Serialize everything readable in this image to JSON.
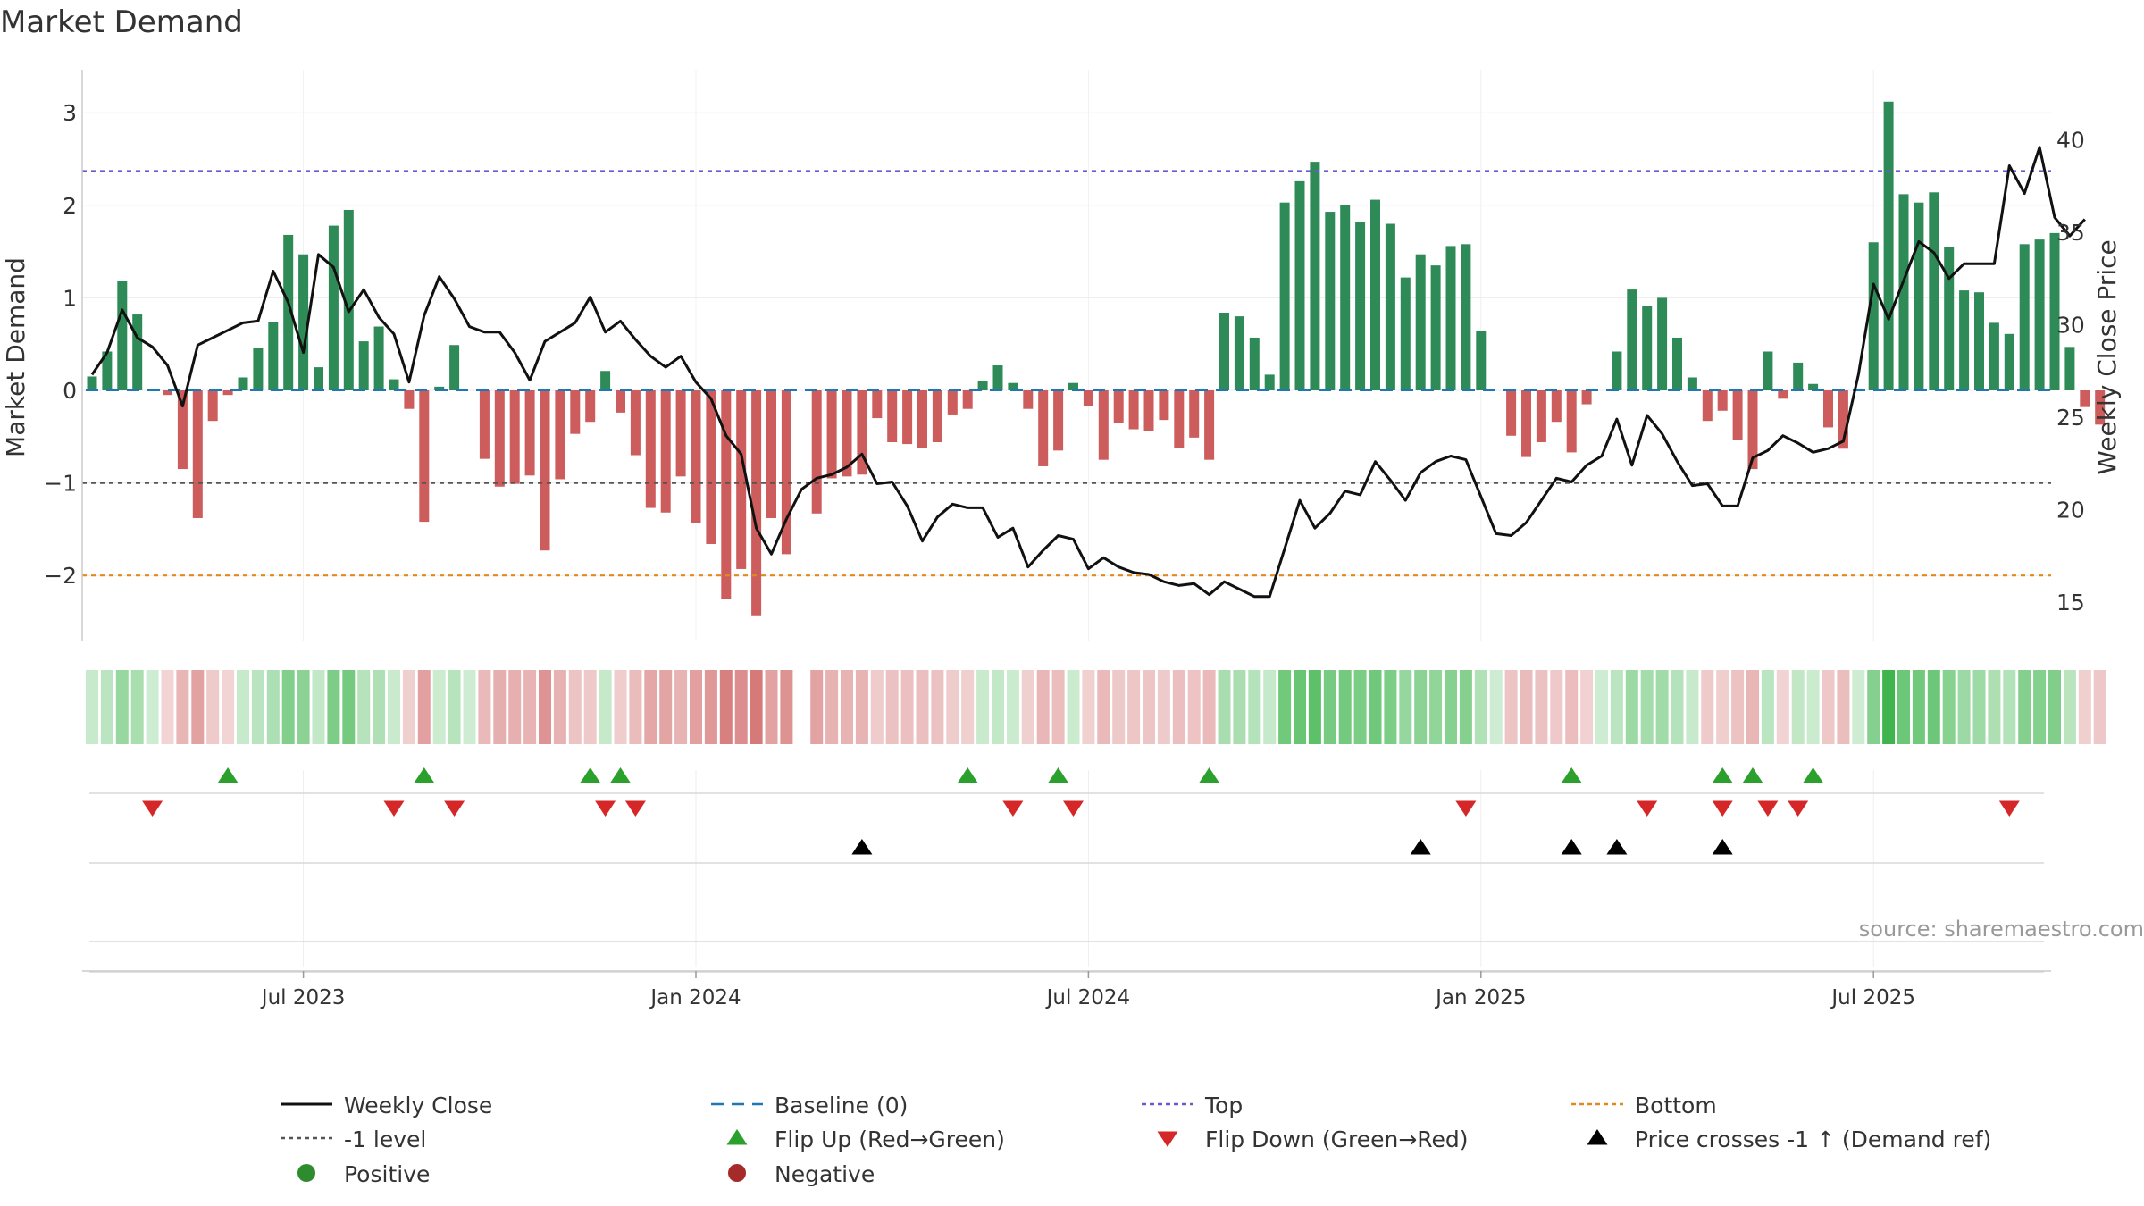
{
  "chart_data": {
    "type": "bar",
    "title": "Market Demand",
    "ylabel": "Market Demand",
    "y2label": "Weekly Close Price",
    "ylim": [
      -2.75,
      3.45
    ],
    "y2lim": [
      12.0,
      43.5
    ],
    "yticks": [
      -2,
      -1,
      0,
      1,
      2,
      3
    ],
    "ytick_labels": [
      "−2",
      "−1",
      "0",
      "1",
      "2",
      "3"
    ],
    "y2ticks": [
      15,
      20,
      25,
      30,
      35,
      40
    ],
    "y2tick_labels": [
      "15",
      "20",
      "25",
      "30",
      "35",
      "40"
    ],
    "xticks": [
      14,
      40,
      66,
      92,
      118
    ],
    "xtick_labels": [
      "Jul 2023",
      "Jan 2024",
      "Jul 2024",
      "Jan 2025",
      "Jul 2025"
    ],
    "reference_lines": {
      "top": 2.37,
      "minus_one": -1.0,
      "bottom": -2.0,
      "baseline": 0
    },
    "demand": [
      0.15,
      0.42,
      1.18,
      0.82,
      0.0,
      -0.05,
      -0.85,
      -1.38,
      -0.33,
      -0.05,
      0.14,
      0.46,
      0.74,
      1.68,
      1.47,
      0.25,
      1.78,
      1.95,
      0.53,
      0.69,
      0.12,
      -0.2,
      -1.42,
      0.04,
      0.49,
      0.0,
      -0.74,
      -1.04,
      -1.01,
      -0.92,
      -1.73,
      -0.96,
      -0.47,
      -0.34,
      0.21,
      -0.24,
      -0.7,
      -1.27,
      -1.32,
      -0.93,
      -1.43,
      -1.66,
      -2.25,
      -1.93,
      -2.43,
      -1.38,
      -1.77,
      null,
      -1.33,
      -0.95,
      -0.93,
      -0.91,
      -0.3,
      -0.56,
      -0.58,
      -0.62,
      -0.56,
      -0.26,
      -0.2,
      0.1,
      0.27,
      0.08,
      -0.2,
      -0.82,
      -0.65,
      0.08,
      -0.17,
      -0.75,
      -0.35,
      -0.42,
      -0.44,
      -0.32,
      -0.62,
      -0.51,
      -0.75,
      0.84,
      0.8,
      0.57,
      0.17,
      2.03,
      2.26,
      2.47,
      1.93,
      2.0,
      1.82,
      2.06,
      1.8,
      1.22,
      1.47,
      1.35,
      1.56,
      1.58,
      0.64,
      0.0,
      -0.49,
      -0.72,
      -0.56,
      -0.34,
      -0.67,
      -0.15,
      0.0,
      0.42,
      1.09,
      0.91,
      1.0,
      0.57,
      0.14,
      -0.33,
      -0.22,
      -0.54,
      -0.85,
      0.42,
      -0.09,
      0.3,
      0.07,
      -0.4,
      -0.63,
      0.02,
      1.6,
      3.12,
      2.12,
      2.03,
      2.14,
      1.55,
      1.08,
      1.06,
      0.73,
      0.61,
      1.58,
      1.63,
      1.7,
      0.47,
      -0.18,
      -0.37
    ],
    "weekly_close": [
      27.3,
      28.5,
      30.8,
      29.3,
      28.8,
      27.8,
      25.6,
      28.9,
      29.3,
      29.7,
      30.1,
      30.2,
      32.9,
      31.2,
      28.5,
      33.8,
      33.1,
      30.7,
      31.9,
      30.4,
      29.5,
      26.9,
      30.5,
      32.6,
      31.4,
      29.9,
      29.6,
      29.6,
      28.5,
      27.0,
      29.1,
      29.6,
      30.1,
      31.5,
      29.6,
      30.2,
      29.2,
      28.3,
      27.7,
      28.3,
      26.9,
      26.0,
      24.0,
      23.0,
      19.0,
      17.6,
      19.5,
      21.1,
      21.7,
      21.9,
      22.3,
      23.0,
      21.4,
      21.5,
      20.2,
      18.3,
      19.6,
      20.3,
      20.1,
      20.1,
      18.5,
      19.0,
      16.9,
      17.8,
      18.6,
      18.4,
      16.8,
      17.4,
      16.9,
      16.6,
      16.5,
      16.1,
      15.9,
      16.0,
      15.4,
      16.1,
      15.7,
      15.3,
      15.3,
      17.9,
      20.5,
      19.0,
      19.8,
      21.0,
      20.8,
      22.6,
      21.6,
      20.5,
      22.0,
      22.6,
      22.9,
      22.7,
      20.7,
      18.7,
      18.6,
      19.3,
      20.5,
      21.7,
      21.5,
      22.4,
      22.9,
      24.9,
      22.4,
      25.1,
      24.1,
      22.6,
      21.3,
      21.4,
      20.2,
      20.2,
      22.8,
      23.2,
      24.0,
      23.6,
      23.1,
      23.3,
      23.7,
      27.3,
      32.2,
      30.3,
      32.4,
      34.5,
      33.9,
      32.5,
      33.3,
      33.3,
      33.3,
      38.6,
      37.1,
      39.6,
      35.8,
      34.8,
      35.7
    ],
    "sign_row": {
      "flip_up": [
        9,
        22,
        33,
        35,
        58,
        64,
        74,
        98,
        108,
        110,
        114
      ],
      "flip_down": [
        4,
        20,
        24,
        34,
        36,
        61,
        65,
        91,
        103,
        108,
        111,
        113,
        127
      ],
      "price_cross": [
        51,
        88,
        98,
        101,
        108
      ]
    },
    "series": [
      {
        "name": "Weekly Close",
        "color": "#111111"
      },
      {
        "name": "Baseline (0)",
        "color": "#1f77b4"
      },
      {
        "name": "Top",
        "color": "#6a5acd"
      },
      {
        "name": "Bottom",
        "color": "#e08a1e"
      },
      {
        "name": "-1 level",
        "color": "#555555"
      },
      {
        "name": "Flip Up (Red→Green)",
        "color": "#2ca02c"
      },
      {
        "name": "Flip Down (Green→Red)",
        "color": "#d62728"
      },
      {
        "name": "Price crosses -1 ↑ (Demand ref)",
        "color": "#000000"
      },
      {
        "name": "Positive",
        "color": "#2e8b2e"
      },
      {
        "name": "Negative",
        "color": "#a52a2a"
      }
    ],
    "colors": {
      "positive_bar": "#2e8b57",
      "negative_bar": "#cd5c5c",
      "heat_positive": "#3cb44b",
      "heat_negative": "#cd5c5c",
      "grid": "#e6e6e6"
    },
    "source": "source: sharemaestro.com"
  }
}
